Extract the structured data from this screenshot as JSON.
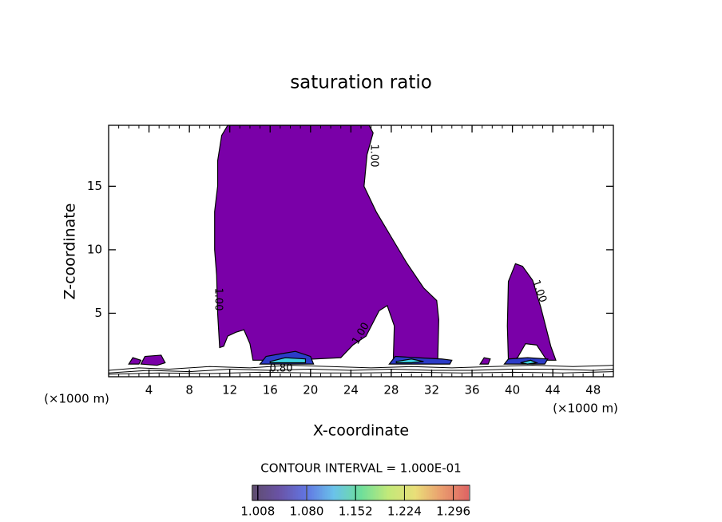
{
  "chart_data": {
    "type": "contour",
    "title": "saturation ratio",
    "x_label": "X-coordinate",
    "y_label": "Z-coordinate",
    "x_unit_left": "(×1000 m)",
    "x_unit_right": "(×1000 m)",
    "xlim": [
      0,
      50
    ],
    "ylim": [
      0,
      19.8
    ],
    "xticks": [
      4,
      8,
      12,
      16,
      20,
      24,
      28,
      32,
      36,
      40,
      44,
      48
    ],
    "yticks": [
      5,
      10,
      15
    ],
    "contour_interval": "CONTOUR INTERVAL = 1.000E-01",
    "contour_labels": [
      "1.00",
      "1.00",
      "1.00",
      "1.00",
      "0.80"
    ],
    "regions": [
      {
        "color": "#7a00a8",
        "x": [
          11,
          10.8,
          10.7,
          10.5,
          10.5,
          10.8,
          10.8,
          11.2,
          11.8,
          25.8,
          26.2,
          25.6,
          25.3,
          26.5,
          28,
          29.5,
          31.2,
          32.5,
          32.7,
          32.6,
          28.2,
          28.3,
          27.6,
          26.8,
          25.5,
          24.2,
          23,
          18,
          14.3,
          14,
          13.4,
          12.6,
          11.8,
          11.4
        ],
        "z": [
          2.3,
          5,
          8,
          10,
          13,
          15,
          17,
          19,
          19.8,
          19.8,
          19.2,
          17.5,
          15,
          13,
          11,
          9,
          7,
          6,
          4.5,
          1.3,
          1.3,
          4,
          5.6,
          5.2,
          3.2,
          2.5,
          1.5,
          1.3,
          1.3,
          2.6,
          3.7,
          3.5,
          3.2,
          2.4
        ]
      },
      {
        "color": "#7a00a8",
        "x": [
          39.6,
          39.5,
          39.6,
          40.3,
          41,
          42,
          42.8,
          43.8,
          44.3,
          43.4,
          42.4,
          41.3,
          40.5,
          40
        ],
        "z": [
          1.3,
          4,
          7.5,
          8.9,
          8.7,
          7.6,
          5.5,
          2.4,
          1.3,
          1.3,
          2.5,
          2.6,
          1.5,
          1.3
        ]
      },
      {
        "color": "#7a00a8",
        "x": [
          2.0,
          2.4,
          3.2,
          3.0
        ],
        "z": [
          1.0,
          1.5,
          1.3,
          1.0
        ]
      },
      {
        "color": "#7a00a8",
        "x": [
          3.2,
          3.6,
          5.2,
          5.6,
          4.8
        ],
        "z": [
          1.0,
          1.6,
          1.7,
          1.1,
          0.9
        ]
      },
      {
        "color": "#7a00a8",
        "x": [
          36.8,
          37.2,
          37.8,
          37.6
        ],
        "z": [
          1.0,
          1.5,
          1.4,
          1.0
        ]
      },
      {
        "color": "#2c3cc8",
        "x": [
          15,
          15.6,
          17,
          18.5,
          20,
          20.3,
          15.2
        ],
        "z": [
          1.0,
          1.6,
          1.8,
          2.0,
          1.6,
          1.0,
          1.0
        ]
      },
      {
        "color": "#3fd0e0",
        "x": [
          16,
          17.5,
          19.5,
          19.5,
          16
        ],
        "z": [
          1.2,
          1.5,
          1.4,
          1.1,
          1.1
        ]
      },
      {
        "color": "#2c3cc8",
        "x": [
          27.8,
          28.4,
          30.5,
          33,
          34,
          33.8,
          27.8
        ],
        "z": [
          1.0,
          1.6,
          1.5,
          1.4,
          1.3,
          1.0,
          1.0
        ]
      },
      {
        "color": "#3fd0e0",
        "x": [
          28.5,
          30,
          31.2,
          30,
          28.5
        ],
        "z": [
          1.2,
          1.4,
          1.2,
          1.1,
          1.1
        ]
      },
      {
        "color": "#2c3cc8",
        "x": [
          39.2,
          39.6,
          41.5,
          43.5,
          43.2,
          39.2
        ],
        "z": [
          1.0,
          1.4,
          1.5,
          1.4,
          1.0,
          1.0
        ]
      },
      {
        "color": "#3fd0e0",
        "x": [
          40.8,
          41.8,
          42.4,
          41.5
        ],
        "z": [
          1.1,
          1.3,
          1.1,
          1.0
        ]
      }
    ],
    "lines": [
      {
        "x": [
          0,
          3,
          6,
          10,
          14,
          18,
          22,
          26,
          30,
          34,
          38,
          42,
          46,
          50
        ],
        "z": [
          0.5,
          0.7,
          0.6,
          0.8,
          0.7,
          0.9,
          0.8,
          0.7,
          0.8,
          0.7,
          0.8,
          0.9,
          0.8,
          0.9
        ]
      },
      {
        "x": [
          0,
          4,
          8,
          12,
          16,
          20,
          24,
          28,
          32,
          36,
          40,
          44,
          48,
          50
        ],
        "z": [
          0.3,
          0.5,
          0.4,
          0.6,
          0.5,
          0.6,
          0.5,
          0.6,
          0.5,
          0.5,
          0.6,
          0.6,
          0.5,
          0.6
        ]
      },
      {
        "x": [
          0,
          5,
          10,
          15,
          20,
          25,
          30,
          35,
          40,
          45,
          50
        ],
        "z": [
          0.2,
          0.3,
          0.25,
          0.35,
          0.3,
          0.3,
          0.35,
          0.3,
          0.35,
          0.3,
          0.4
        ]
      }
    ],
    "colorbar": {
      "lim": [
        1.0,
        1.32
      ],
      "ticks": [
        1.008,
        {
          "value": 1.08,
          "label": "1.080"
        },
        1.152,
        1.224,
        1.296
      ],
      "colors": [
        "#1a0030",
        "#2a0a80",
        "#1e3cd8",
        "#2aa8e0",
        "#30d070",
        "#a8e040",
        "#e0d040",
        "#e07030",
        "#d02020"
      ]
    }
  }
}
